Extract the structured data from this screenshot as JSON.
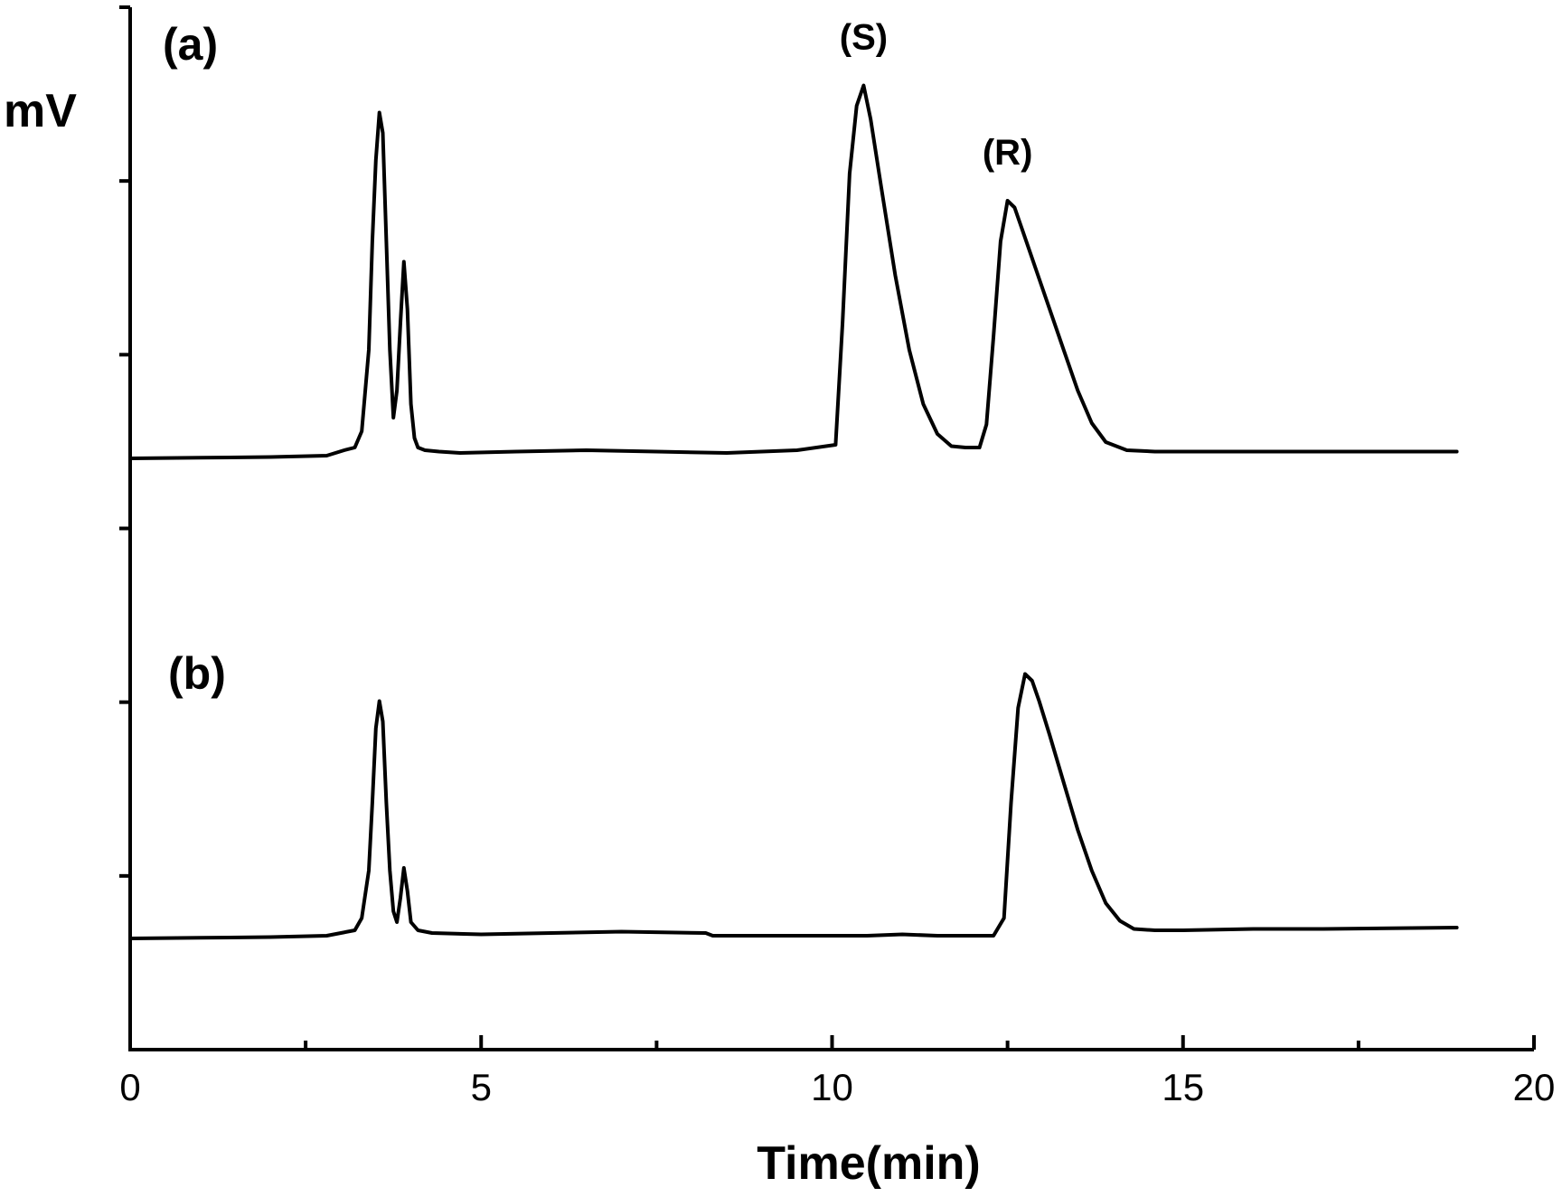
{
  "chart_data": {
    "type": "line",
    "xlabel": "Time(min)",
    "ylabel": "mV",
    "xlim": [
      0,
      20
    ],
    "x_ticks": [
      0,
      5,
      10,
      15,
      20
    ],
    "x_minor_step": 2.5,
    "y_ticks_unlabeled": 5,
    "grid": false,
    "peak_labels": [
      {
        "text": "(S)",
        "x": 10.5,
        "series": "(a)"
      },
      {
        "text": "(R)",
        "x": 12.6,
        "series": "(a)"
      }
    ],
    "series": [
      {
        "name": "(a)",
        "x": [
          0.0,
          1.0,
          2.0,
          2.8,
          3.05,
          3.2,
          3.3,
          3.4,
          3.45,
          3.5,
          3.55,
          3.6,
          3.65,
          3.7,
          3.75,
          3.8,
          3.85,
          3.9,
          3.95,
          4.0,
          4.05,
          4.1,
          4.2,
          4.4,
          4.7,
          5.5,
          6.5,
          7.5,
          8.5,
          9.5,
          10.05,
          10.15,
          10.25,
          10.35,
          10.45,
          10.55,
          10.7,
          10.9,
          11.1,
          11.3,
          11.5,
          11.7,
          11.9,
          12.1,
          12.2,
          12.3,
          12.4,
          12.5,
          12.6,
          12.7,
          12.9,
          13.1,
          13.3,
          13.5,
          13.7,
          13.9,
          14.2,
          14.6,
          15.5,
          17.0,
          18.9
        ],
        "y": [
          0.0,
          0.05,
          0.1,
          0.2,
          0.6,
          0.8,
          2.0,
          8.0,
          16.0,
          22.0,
          25.5,
          24.0,
          16.0,
          8.0,
          3.0,
          5.0,
          10.0,
          14.5,
          11.0,
          4.0,
          1.5,
          0.8,
          0.6,
          0.5,
          0.4,
          0.5,
          0.6,
          0.5,
          0.4,
          0.6,
          1.0,
          10.0,
          21.0,
          26.0,
          27.5,
          25.0,
          20.0,
          13.5,
          8.0,
          4.0,
          1.8,
          0.9,
          0.8,
          0.8,
          2.5,
          9.0,
          16.0,
          19.0,
          18.5,
          17.0,
          14.0,
          11.0,
          8.0,
          5.0,
          2.6,
          1.2,
          0.6,
          0.5,
          0.5,
          0.5,
          0.5
        ]
      },
      {
        "name": "(b)",
        "x": [
          0.0,
          1.0,
          2.0,
          2.8,
          3.2,
          3.3,
          3.4,
          3.45,
          3.5,
          3.55,
          3.6,
          3.65,
          3.7,
          3.75,
          3.8,
          3.85,
          3.9,
          3.95,
          4.0,
          4.1,
          4.3,
          5.0,
          6.0,
          7.0,
          8.2,
          8.3,
          9.5,
          10.5,
          11.0,
          11.5,
          12.3,
          12.45,
          12.55,
          12.65,
          12.75,
          12.85,
          12.95,
          13.1,
          13.3,
          13.5,
          13.7,
          13.9,
          14.1,
          14.3,
          14.6,
          15.0,
          16.0,
          17.0,
          18.9
        ],
        "y": [
          0.0,
          0.05,
          0.1,
          0.2,
          0.6,
          1.5,
          5.0,
          10.0,
          15.5,
          17.5,
          16.0,
          10.0,
          5.0,
          2.0,
          1.2,
          3.0,
          5.2,
          3.5,
          1.2,
          0.6,
          0.4,
          0.3,
          0.4,
          0.5,
          0.4,
          0.2,
          0.2,
          0.2,
          0.3,
          0.2,
          0.2,
          1.5,
          10.0,
          17.0,
          19.5,
          19.0,
          17.5,
          15.0,
          11.5,
          8.0,
          5.0,
          2.6,
          1.3,
          0.7,
          0.6,
          0.6,
          0.7,
          0.7,
          0.8
        ]
      }
    ]
  },
  "labels": {
    "panel_a": "(a)",
    "panel_b": "(b)"
  }
}
